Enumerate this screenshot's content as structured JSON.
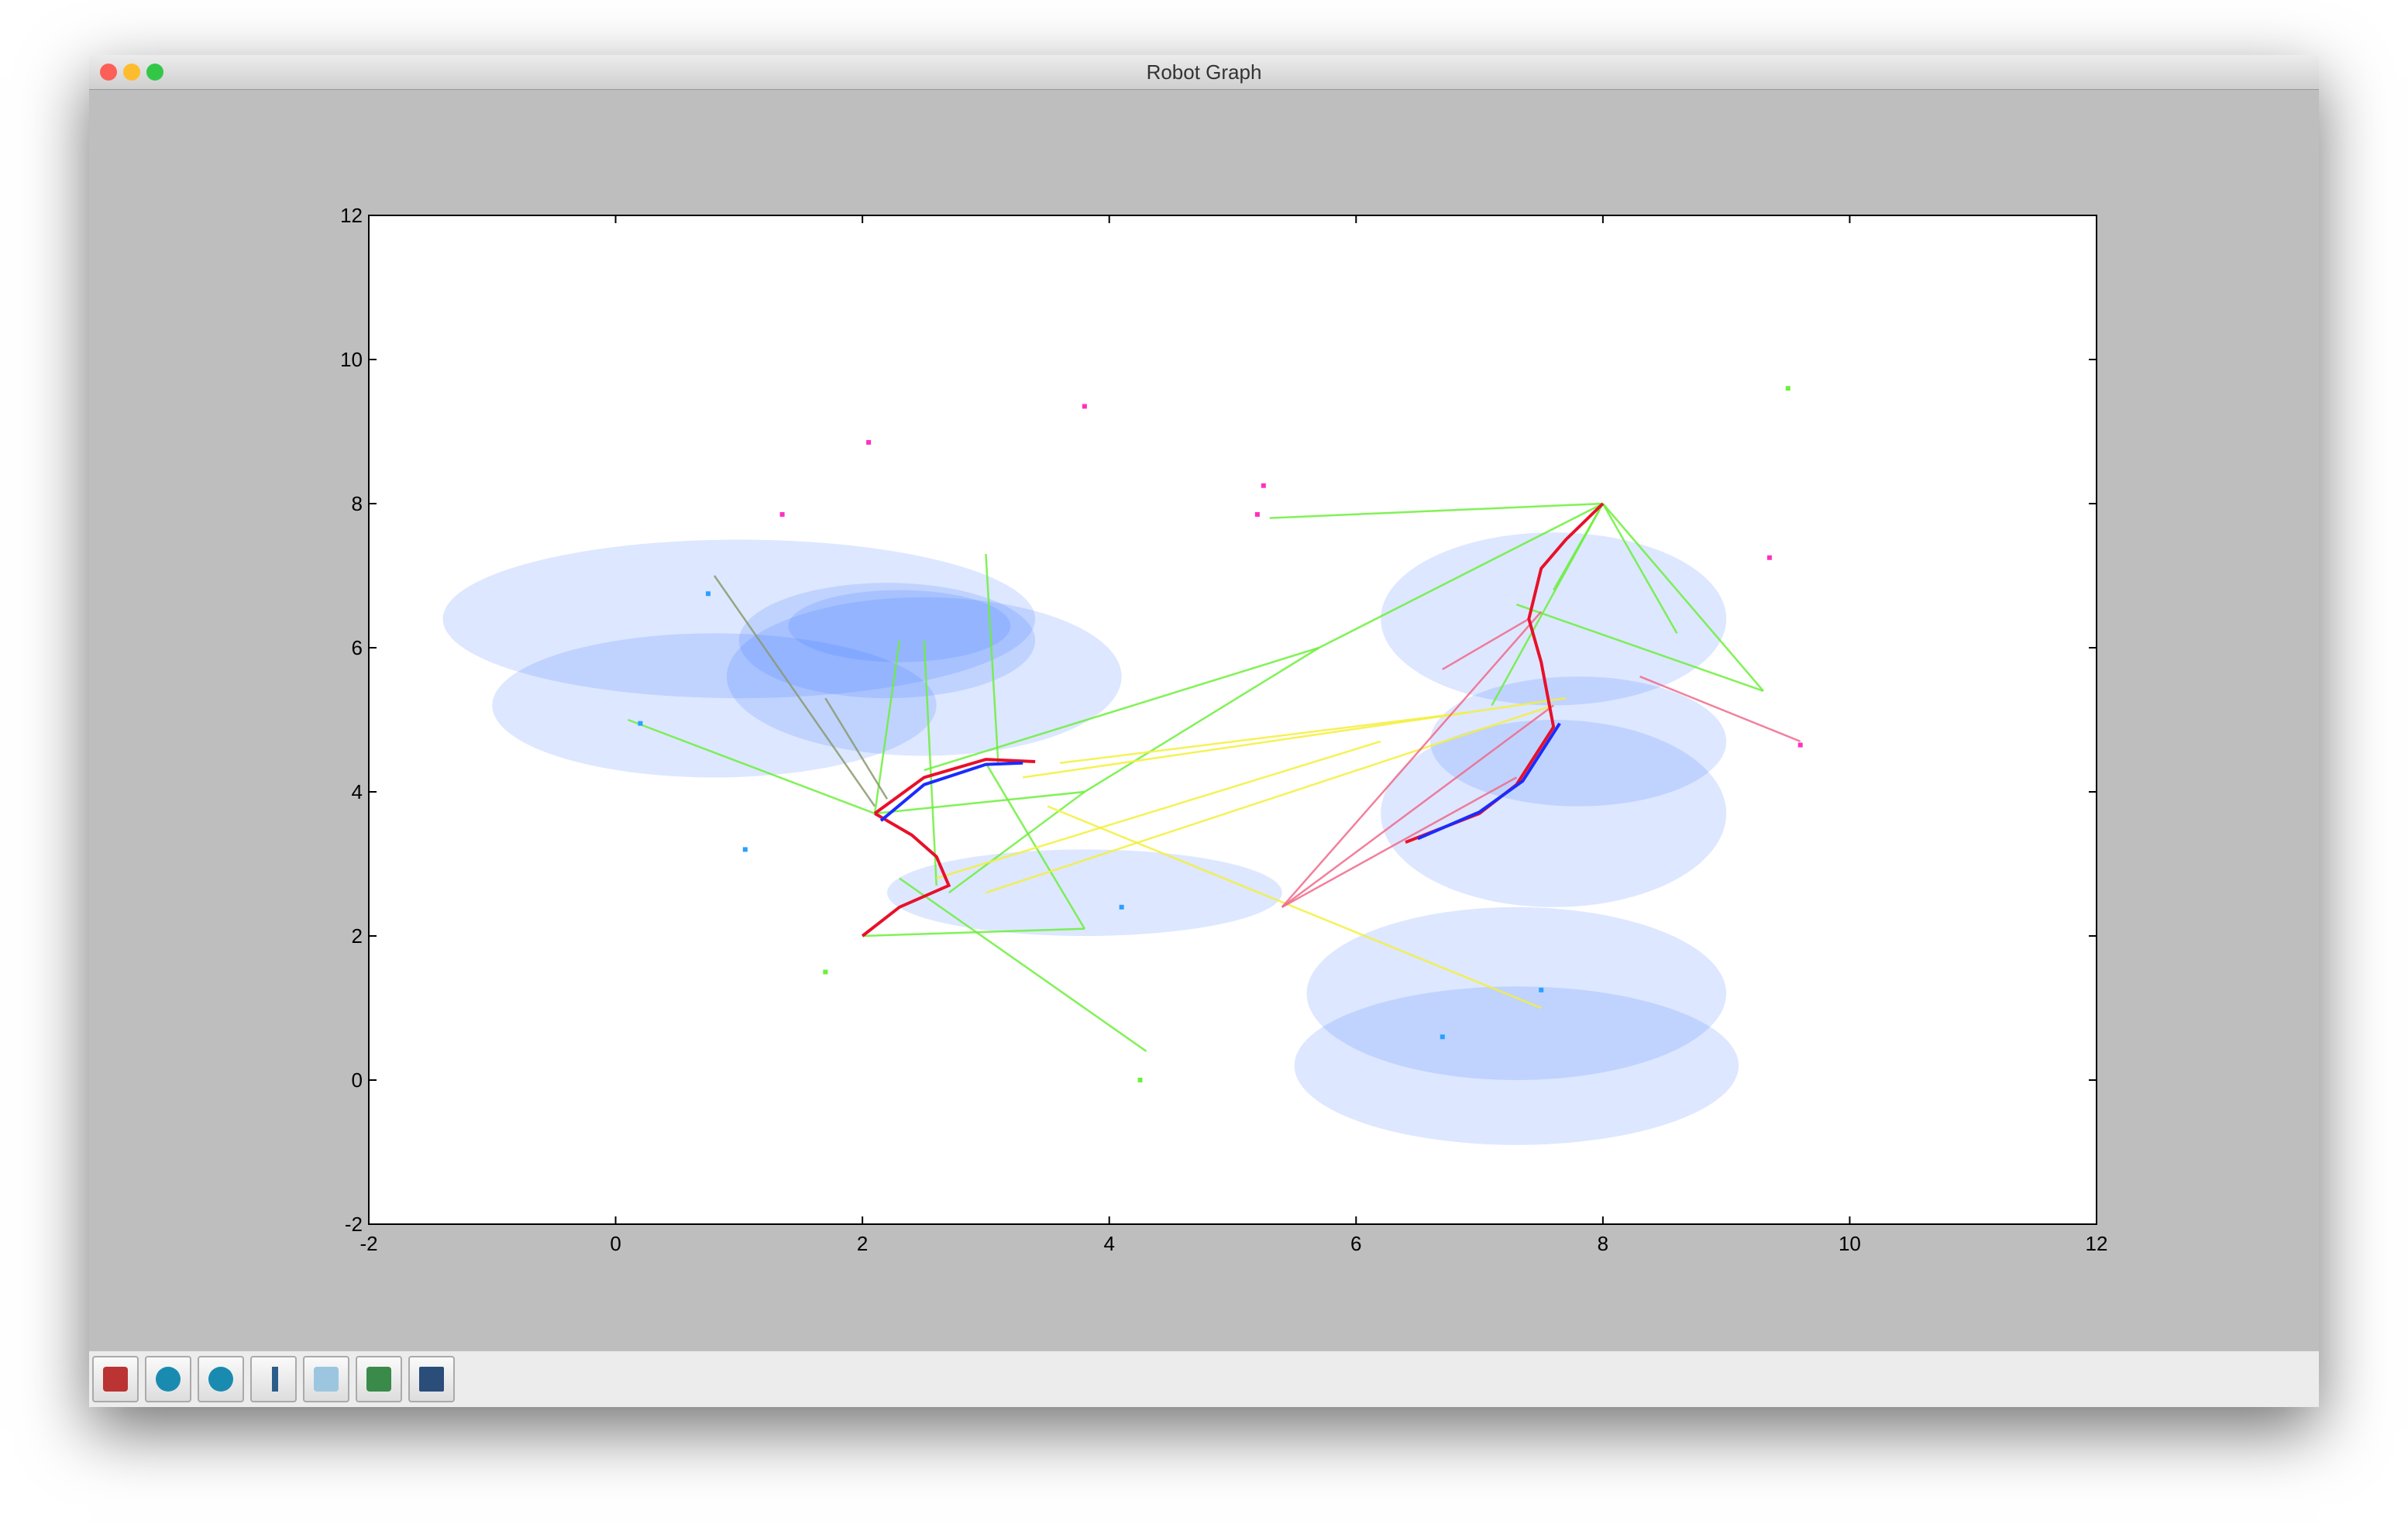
{
  "window": {
    "title": "Robot Graph"
  },
  "chart_data": {
    "type": "line",
    "xlim": [
      -2,
      12
    ],
    "ylim": [
      -2,
      12
    ],
    "xticks": [
      -2,
      0,
      2,
      4,
      6,
      8,
      10,
      12
    ],
    "yticks": [
      -2,
      0,
      2,
      4,
      6,
      8,
      10,
      12
    ],
    "ellipse_color": "#2f6bff2a",
    "ellipses": [
      [
        2.2,
        6.1,
        1.2,
        0.8
      ],
      [
        1,
        6.4,
        2.4,
        1.1
      ],
      [
        0.8,
        5.2,
        1.8,
        1
      ],
      [
        2.5,
        5.6,
        1.6,
        1.1
      ],
      [
        2.3,
        6.3,
        0.9,
        0.5
      ],
      [
        7.6,
        6.4,
        1.4,
        1.2
      ],
      [
        7.8,
        4.7,
        1.2,
        0.9
      ],
      [
        7.6,
        3.7,
        1.4,
        1.3
      ],
      [
        7.3,
        1.2,
        1.7,
        1.2
      ],
      [
        7.3,
        0.2,
        1.8,
        1.1
      ],
      [
        3.8,
        2.6,
        1.6,
        0.6
      ]
    ],
    "edge_groups": [
      {
        "color": "#6cf03a",
        "segments": [
          [
            8,
            8,
            9.3,
            5.4
          ],
          [
            8,
            8,
            7.6,
            6.8
          ],
          [
            8,
            8,
            5.3,
            7.8
          ],
          [
            8,
            8,
            7.1,
            5.2
          ],
          [
            8,
            8,
            5.7,
            6
          ],
          [
            8,
            8,
            8.6,
            6.2
          ],
          [
            2.1,
            3.7,
            0.1,
            5
          ],
          [
            2.1,
            3.7,
            2.3,
            6.1
          ],
          [
            3,
            7.3,
            3.1,
            4.4
          ],
          [
            3.8,
            4,
            2.1,
            3.7
          ],
          [
            3.8,
            2.1,
            2,
            2
          ],
          [
            4.3,
            0.4,
            2.3,
            2.8
          ],
          [
            5.7,
            6,
            2.5,
            4.3
          ],
          [
            3.8,
            4,
            2.7,
            2.6
          ],
          [
            2.5,
            6.1,
            2.6,
            2.7
          ],
          [
            9.3,
            5.4,
            7.3,
            6.6
          ],
          [
            5.7,
            6,
            3.8,
            4
          ],
          [
            3.8,
            2.1,
            3,
            4.4
          ]
        ]
      },
      {
        "color": "#f4f03a",
        "segments": [
          [
            3,
            2.6,
            7.6,
            5.2
          ],
          [
            3.6,
            4.4,
            6.9,
            5.1
          ],
          [
            3.5,
            3.8,
            7.5,
            1
          ],
          [
            2.6,
            2.8,
            6.2,
            4.7
          ],
          [
            3.3,
            4.2,
            7.7,
            5.3
          ]
        ]
      },
      {
        "color": "#f06a8a",
        "segments": [
          [
            5.4,
            2.4,
            7.3,
            4.2
          ],
          [
            5.4,
            2.4,
            7.5,
            6.5
          ],
          [
            5.4,
            2.4,
            7.6,
            5.2
          ],
          [
            6.7,
            5.7,
            7.4,
            6.4
          ],
          [
            9.6,
            4.7,
            8.3,
            5.6
          ]
        ]
      },
      {
        "color": "#8a9a70",
        "segments": [
          [
            0.8,
            7,
            2.1,
            3.8
          ],
          [
            1.7,
            5.3,
            2.2,
            3.9
          ]
        ]
      }
    ],
    "series": [
      {
        "color": "#e8102a",
        "x": [
          2.1,
          2.5,
          3,
          3.4
        ],
        "values": [
          3.7,
          4.2,
          4.45,
          4.42
        ]
      },
      {
        "color": "#e8102a",
        "x": [
          2.1,
          2.4,
          2.6,
          2.7,
          2.3,
          2
        ],
        "values": [
          3.7,
          3.4,
          3.1,
          2.7,
          2.4,
          2
        ]
      },
      {
        "color": "#1a2cff",
        "x": [
          2.15,
          2.5,
          3,
          3.3
        ],
        "values": [
          3.6,
          4.1,
          4.38,
          4.4
        ]
      },
      {
        "color": "#e8102a",
        "x": [
          6.4,
          7,
          7.3,
          7.6,
          7.5,
          7.4,
          7.5,
          7.7,
          8
        ],
        "values": [
          3.3,
          3.7,
          4.1,
          4.9,
          5.8,
          6.4,
          7.1,
          7.5,
          8
        ]
      },
      {
        "color": "#1a2cff",
        "x": [
          6.5,
          7,
          7.35,
          7.65
        ],
        "values": [
          3.35,
          3.72,
          4.15,
          4.95
        ]
      }
    ],
    "points": [
      {
        "color": "#ff30c0",
        "x": [
          2.05,
          1.35,
          3.8,
          5.25,
          9.35,
          9.6,
          5.2
        ],
        "values": [
          8.85,
          7.85,
          9.35,
          8.25,
          7.25,
          4.65,
          7.85
        ]
      },
      {
        "color": "#2aa0ff",
        "x": [
          0.75,
          1.05,
          4.1,
          7.5,
          6.7,
          0.2
        ],
        "values": [
          6.75,
          3.2,
          2.4,
          1.25,
          0.6,
          4.95
        ]
      },
      {
        "color": "#6cf03a",
        "x": [
          1.7,
          4.25,
          9.5
        ],
        "values": [
          1.5,
          0,
          9.6
        ]
      }
    ]
  }
}
